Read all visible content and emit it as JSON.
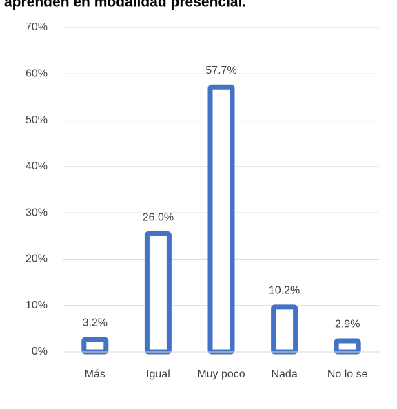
{
  "chart_data": {
    "type": "bar",
    "title": "aprenden en modalidad presencial.",
    "categories": [
      "Más",
      "Igual",
      "Muy poco",
      "Nada",
      "No lo se"
    ],
    "values": [
      3.2,
      26.0,
      57.7,
      10.2,
      2.9
    ],
    "value_labels": [
      "3.2%",
      "26.0%",
      "57.7%",
      "10.2%",
      "2.9%"
    ],
    "color": "#4472c4",
    "ylim": [
      0,
      70
    ],
    "yticks": [
      {
        "value": 0,
        "label": "0%"
      },
      {
        "value": 10,
        "label": "10%"
      },
      {
        "value": 20,
        "label": "20%"
      },
      {
        "value": 30,
        "label": "30%"
      },
      {
        "value": 40,
        "label": "40%"
      },
      {
        "value": 50,
        "label": "50%"
      },
      {
        "value": 60,
        "label": "60%"
      },
      {
        "value": 70,
        "label": "70%"
      }
    ],
    "grid": true
  }
}
